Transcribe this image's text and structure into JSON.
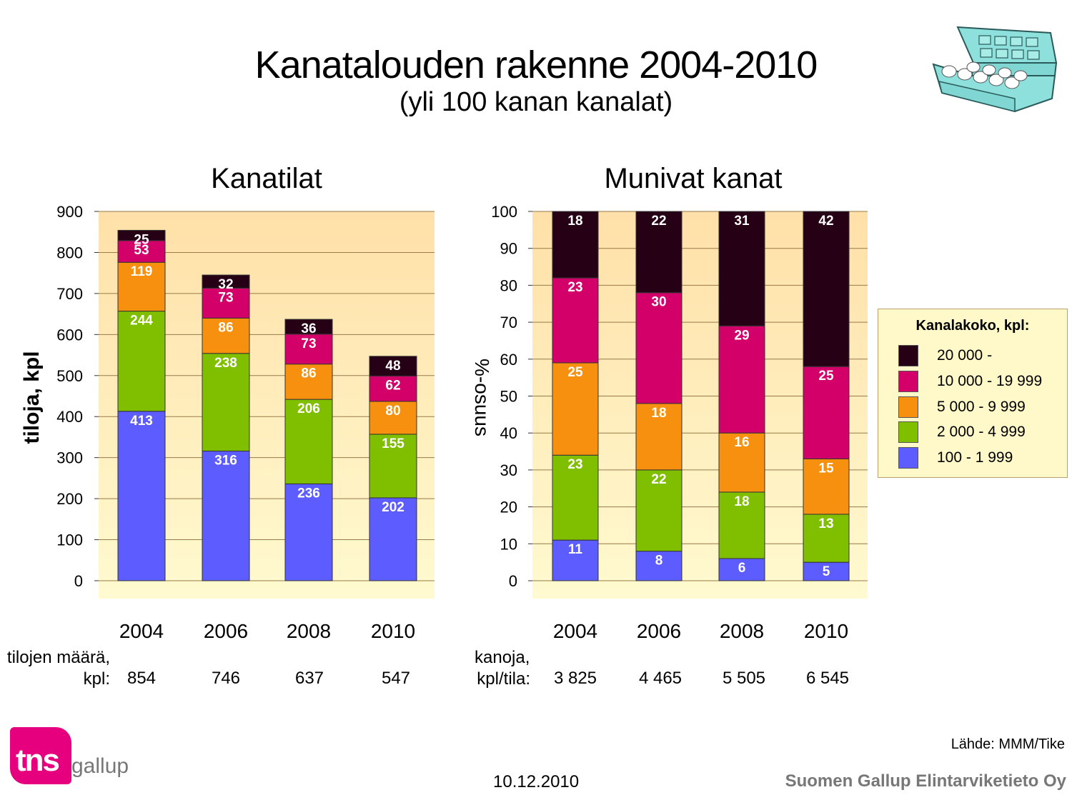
{
  "title": "Kanatalouden rakenne 2004-2010",
  "subtitle": "(yli 100 kanan kanalat)",
  "colors": {
    "20000_plus": "#260014",
    "10000_19999": "#d4006a",
    "5000_9999": "#f7900f",
    "2000_4999": "#7fbf00",
    "100_1999": "#5c5cff",
    "plot_bg_top": "#ffe0a8",
    "plot_bg_bottom": "#fffad0"
  },
  "legend": {
    "title": "Kanalakoko, kpl:",
    "items": [
      "20 000 -",
      "10 000 - 19 999",
      "5 000 - 9 999",
      "2 000 - 4 999",
      "100 - 1 999"
    ]
  },
  "chart_data": [
    {
      "type": "bar",
      "stacked": true,
      "title": "Kanatilat",
      "ylabel": "tiloja, kpl",
      "ylim": [
        0,
        900
      ],
      "yticks": [
        0,
        100,
        200,
        300,
        400,
        500,
        600,
        700,
        800,
        900
      ],
      "categories": [
        "2004",
        "2006",
        "2008",
        "2010"
      ],
      "series": [
        {
          "name": "100 - 1 999",
          "values": [
            413,
            316,
            236,
            202
          ]
        },
        {
          "name": "2 000 - 4 999",
          "values": [
            244,
            238,
            206,
            155
          ]
        },
        {
          "name": "5 000 - 9 999",
          "values": [
            119,
            86,
            86,
            80
          ]
        },
        {
          "name": "10 000 - 19 999",
          "values": [
            53,
            73,
            73,
            62
          ]
        },
        {
          "name": "20 000 -",
          "values": [
            25,
            32,
            36,
            48
          ]
        }
      ],
      "footer_label_1": "tilojen määrä,",
      "footer_label_2": "kpl:",
      "footer_values": [
        "854",
        "746",
        "637",
        "547"
      ]
    },
    {
      "type": "bar",
      "stacked": true,
      "title": "Munivat kanat",
      "ylabel": "%-osuus",
      "ylim": [
        0,
        100
      ],
      "yticks": [
        0,
        10,
        20,
        30,
        40,
        50,
        60,
        70,
        80,
        90,
        100
      ],
      "categories": [
        "2004",
        "2006",
        "2008",
        "2010"
      ],
      "series": [
        {
          "name": "100 - 1 999",
          "values": [
            11,
            8,
            6,
            5
          ]
        },
        {
          "name": "2 000 - 4 999",
          "values": [
            23,
            22,
            18,
            13
          ]
        },
        {
          "name": "5 000 - 9 999",
          "values": [
            25,
            18,
            16,
            15
          ]
        },
        {
          "name": "10 000 - 19 999",
          "values": [
            23,
            30,
            29,
            25
          ]
        },
        {
          "name": "20 000 -",
          "values": [
            18,
            22,
            31,
            42
          ]
        }
      ],
      "footer_label_1": "kanoja,",
      "footer_label_2": "kpl/tila:",
      "footer_values": [
        "3 825",
        "4 465",
        "5 505",
        "6 545"
      ]
    }
  ],
  "source": "Lähde: MMM/Tike",
  "date": "10.12.2010",
  "company": "Suomen Gallup Elintarviketieto Oy",
  "logo": {
    "brand": "tns",
    "suffix": "gallup"
  }
}
